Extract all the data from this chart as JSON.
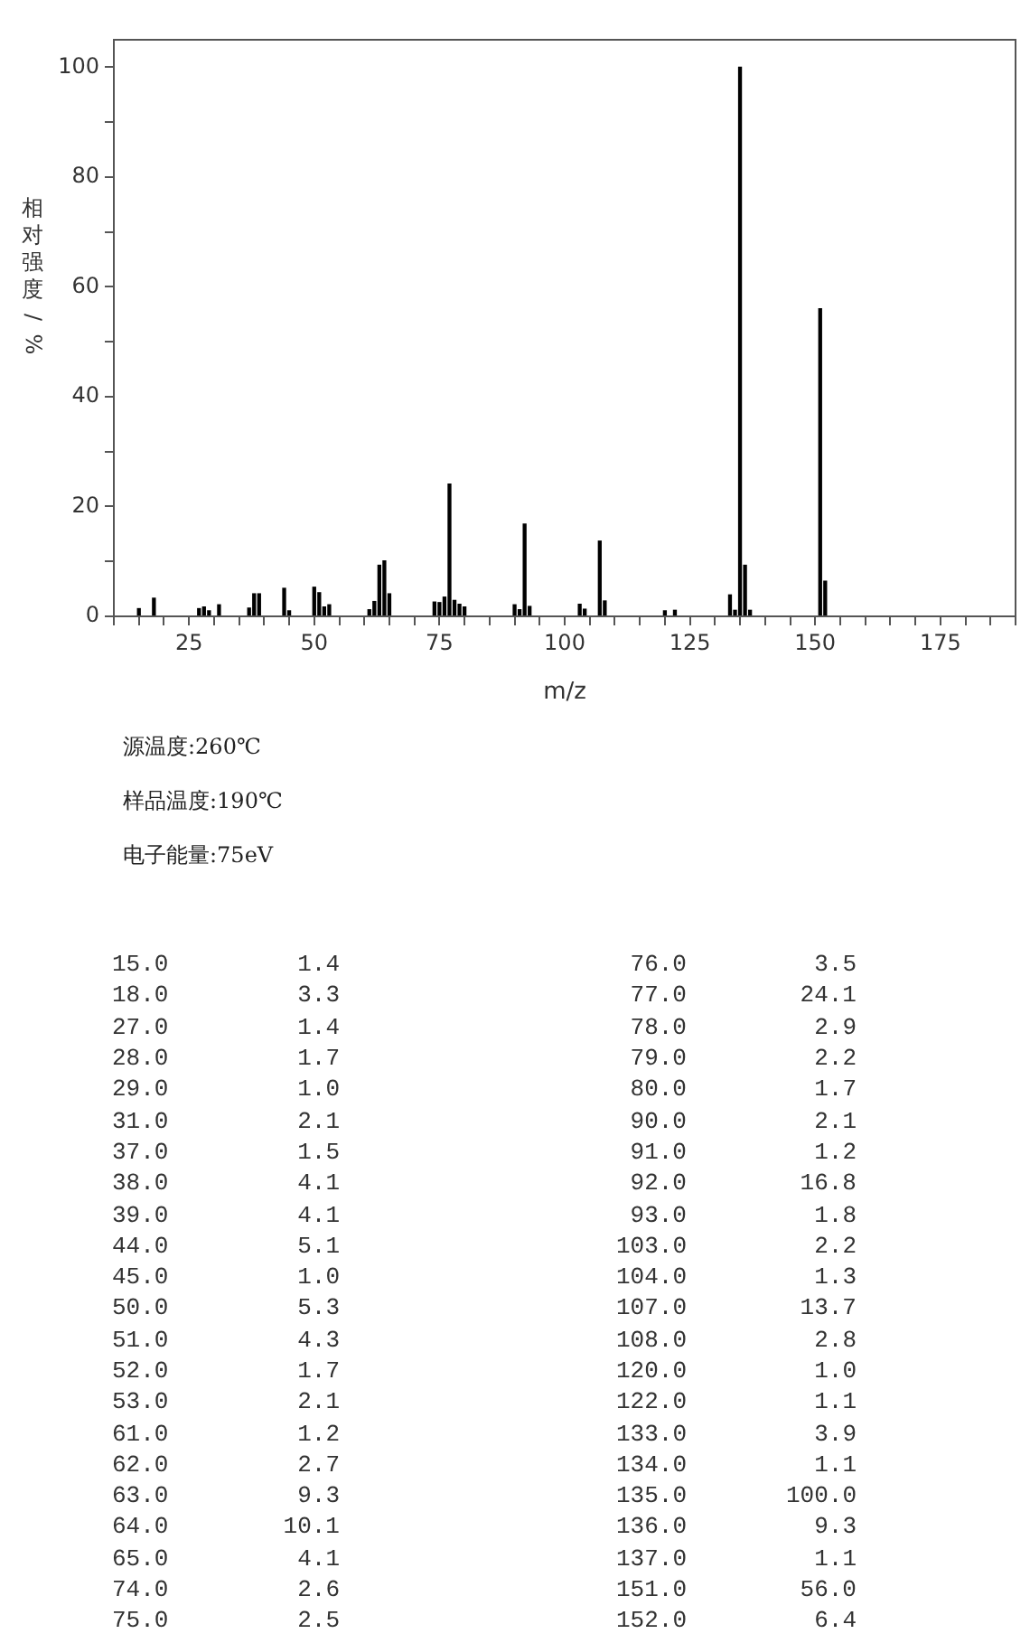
{
  "chart_data": [
    {
      "type": "bar",
      "xlabel": "m/z",
      "ylabel": "相对强度/%",
      "x": [
        15,
        18,
        27,
        28,
        29,
        31,
        37,
        38,
        39,
        44,
        45,
        50,
        51,
        52,
        53,
        61,
        62,
        63,
        64,
        65,
        74,
        75,
        76,
        77,
        78,
        79,
        80,
        90,
        91,
        92,
        93,
        103,
        104,
        107,
        108,
        120,
        122,
        133,
        134,
        135,
        136,
        137,
        151,
        152
      ],
      "values": [
        1.4,
        3.3,
        1.4,
        1.7,
        1.0,
        2.1,
        1.5,
        4.1,
        4.1,
        5.1,
        1.0,
        5.3,
        4.3,
        1.7,
        2.1,
        1.2,
        2.7,
        9.3,
        10.1,
        4.1,
        2.6,
        2.5,
        3.5,
        24.1,
        2.9,
        2.2,
        1.7,
        2.1,
        1.2,
        16.8,
        1.8,
        2.2,
        1.3,
        13.7,
        2.8,
        1.0,
        1.1,
        3.9,
        1.1,
        100.0,
        9.3,
        1.1,
        56.0,
        6.4
      ],
      "color": "#000000",
      "xlim": [
        10,
        190
      ],
      "xticks": [
        {
          "value": 10,
          "label": null
        },
        {
          "value": 15,
          "label": null
        },
        {
          "value": 20,
          "label": null
        },
        25,
        {
          "value": 30,
          "label": null
        },
        {
          "value": 35,
          "label": null
        },
        {
          "value": 40,
          "label": null
        },
        {
          "value": 45,
          "label": null
        },
        50,
        {
          "value": 55,
          "label": null
        },
        {
          "value": 60,
          "label": null
        },
        {
          "value": 65,
          "label": null
        },
        {
          "value": 70,
          "label": null
        },
        75,
        {
          "value": 80,
          "label": null
        },
        {
          "value": 85,
          "label": null
        },
        {
          "value": 90,
          "label": null
        },
        {
          "value": 95,
          "label": null
        },
        100,
        {
          "value": 105,
          "label": null
        },
        {
          "value": 110,
          "label": null
        },
        {
          "value": 115,
          "label": null
        },
        {
          "value": 120,
          "label": null
        },
        125,
        {
          "value": 130,
          "label": null
        },
        {
          "value": 135,
          "label": null
        },
        {
          "value": 140,
          "label": null
        },
        {
          "value": 145,
          "label": null
        },
        150,
        {
          "value": 155,
          "label": null
        },
        {
          "value": 160,
          "label": null
        },
        {
          "value": 165,
          "label": null
        },
        {
          "value": 170,
          "label": null
        },
        175,
        {
          "value": 180,
          "label": null
        },
        {
          "value": 185,
          "label": null
        },
        {
          "value": 190,
          "label": null
        }
      ],
      "ylim": [
        0,
        105
      ],
      "yticks": [
        0,
        {
          "value": 10,
          "label": null
        },
        20,
        {
          "value": 30,
          "label": null
        },
        40,
        {
          "value": 50,
          "label": null
        },
        60,
        {
          "value": 70,
          "label": null
        },
        80,
        {
          "value": 90,
          "label": null
        },
        100
      ],
      "grid": false,
      "annotations": [
        "源温度:260℃",
        "样品温度:190℃",
        "电子能量:75eV"
      ]
    },
    {
      "type": "other",
      "annotations": [
        "15.0",
        "1.4",
        "18.0",
        "3.3",
        "27.0",
        "1.4",
        "28.0",
        "1.7",
        "29.0",
        "1.0",
        "31.0",
        "2.1",
        "37.0",
        "1.5",
        "38.0",
        "4.1",
        "39.0",
        "4.1",
        "44.0",
        "5.1",
        "45.0",
        "1.0",
        "50.0",
        "5.3",
        "51.0",
        "4.3",
        "52.0",
        "1.7",
        "53.0",
        "2.1",
        "61.0",
        "1.2",
        "62.0",
        "2.7",
        "63.0",
        "9.3",
        "64.0",
        "10.1",
        "65.0",
        "4.1",
        "74.0",
        "2.6",
        "75.0",
        "2.5",
        "76.0",
        "3.5",
        "77.0",
        "24.1",
        "78.0",
        "2.9",
        "79.0",
        "2.2",
        "80.0",
        "1.7",
        "90.0",
        "2.1",
        "91.0",
        "1.2",
        "92.0",
        "16.8",
        "93.0",
        "1.8",
        "103.0",
        "2.2",
        "104.0",
        "1.3",
        "107.0",
        "13.7",
        "108.0",
        "2.8",
        "120.0",
        "1.0",
        "122.0",
        "1.1",
        "133.0",
        "3.9",
        "134.0",
        "1.1",
        "135.0",
        "100.0",
        "136.0",
        "9.3",
        "137.0",
        "1.1",
        "151.0",
        "56.0",
        "152.0",
        "6.4"
      ]
    }
  ]
}
